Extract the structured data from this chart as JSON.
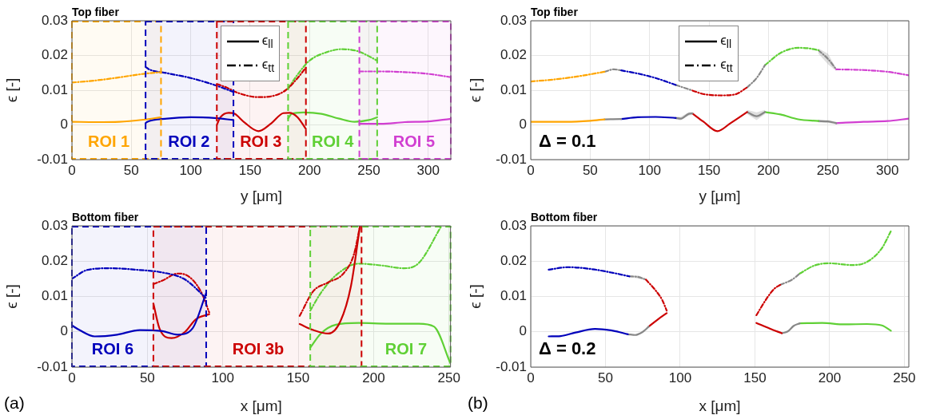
{
  "chart_data": [
    {
      "type": "line",
      "title": "Top fiber",
      "xlabel": "y [μm]",
      "ylabel": "ϵ [-]",
      "xlim": [
        0,
        319
      ],
      "ylim": [
        -0.01,
        0.03
      ],
      "xticks": [
        0,
        50,
        100,
        150,
        200,
        250,
        300
      ],
      "yticks": [
        -0.01,
        0,
        0.01,
        0.02,
        0.03
      ],
      "grid": true,
      "annotations": [
        "ϵ$_{ll}$",
        "ϵ$_{tt}$"
      ],
      "bands": [
        {
          "axis": "x",
          "from": 0,
          "to": 75,
          "label": "ROI 1",
          "color": "#ffa500"
        },
        {
          "axis": "x",
          "from": 62,
          "to": 136,
          "label": "ROI 2",
          "color": "#0000bb"
        },
        {
          "axis": "x",
          "from": 122,
          "to": 197,
          "label": "ROI 3",
          "color": "#cc0000"
        },
        {
          "axis": "x",
          "from": 182,
          "to": 257,
          "label": "ROI 4",
          "color": "#5fd035"
        },
        {
          "axis": "x",
          "from": 242,
          "to": 319,
          "label": "ROI 5",
          "color": "#d13fd1"
        }
      ],
      "series": [
        {
          "color": "#ffa500",
          "line_style": "solid",
          "x": [
            0,
            20,
            40,
            60,
            75
          ],
          "values": [
            0.0009,
            0.0008,
            0.0009,
            0.0015,
            0.0022
          ]
        },
        {
          "color": "#ffa500",
          "line_style": "dashed",
          "x": [
            0,
            20,
            40,
            60,
            75
          ],
          "values": [
            0.0122,
            0.0128,
            0.0137,
            0.0147,
            0.0152
          ]
        },
        {
          "color": "#0000bb",
          "line_style": "solid",
          "x": [
            62,
            63,
            80,
            100,
            120,
            136
          ],
          "values": [
            0.0005,
            0.0008,
            0.0018,
            0.0022,
            0.002,
            0.0014
          ]
        },
        {
          "color": "#0000bb",
          "line_style": "dashed",
          "x": [
            62,
            65,
            80,
            100,
            120,
            136
          ],
          "values": [
            0.0167,
            0.016,
            0.0149,
            0.0135,
            0.0115,
            0.0095
          ]
        },
        {
          "color": "#cc0000",
          "line_style": "solid",
          "x": [
            122,
            125,
            132,
            137,
            145,
            157,
            168,
            178,
            183,
            190,
            197
          ],
          "values": [
            0,
            0.0022,
            0.0035,
            0.0032,
            0.0008,
            -0.0018,
            0.0005,
            0.0034,
            0.0035,
            0.0022,
            -0.0012
          ]
        },
        {
          "color": "#cc0000",
          "line_style": "dashed",
          "x": [
            122,
            130,
            140,
            157,
            170,
            180,
            190,
            197
          ],
          "values": [
            0.0118,
            0.0108,
            0.0092,
            0.008,
            0.0084,
            0.01,
            0.0135,
            0.0165
          ]
        },
        {
          "color": "#5fd035",
          "line_style": "solid",
          "x": [
            182,
            185,
            195,
            210,
            225,
            238,
            250,
            257
          ],
          "values": [
            0.0018,
            0.0032,
            0.0036,
            0.0032,
            0.0018,
            0.0009,
            0.0014,
            0.0022
          ]
        },
        {
          "color": "#5fd035",
          "line_style": "dashed",
          "x": [
            182,
            190,
            200,
            215,
            227,
            240,
            250,
            257
          ],
          "values": [
            0.0105,
            0.0145,
            0.0185,
            0.021,
            0.0218,
            0.0213,
            0.0198,
            0.0185
          ]
        },
        {
          "color": "#d13fd1",
          "line_style": "solid",
          "x": [
            242,
            260,
            280,
            300,
            318
          ],
          "values": [
            0.0003,
            0.0003,
            0.0008,
            0.001,
            0.0017
          ]
        },
        {
          "color": "#d13fd1",
          "line_style": "dashed",
          "x": [
            242,
            260,
            280,
            300,
            318
          ],
          "values": [
            0.0154,
            0.0154,
            0.0152,
            0.0147,
            0.0138
          ]
        }
      ]
    },
    {
      "type": "line",
      "title": "Top fiber",
      "xlabel": "y [μm]",
      "ylabel": "ϵ [-]",
      "xlim": [
        0,
        318
      ],
      "ylim": [
        -0.01,
        0.03
      ],
      "xticks": [
        0,
        50,
        100,
        150,
        200,
        250,
        300
      ],
      "yticks": [
        -0.01,
        0,
        0.01,
        0.02,
        0.03
      ],
      "grid": true,
      "annotations": [
        "ϵ$_{ll}$",
        "ϵ$_{tt}$",
        "Δ = 0.1"
      ],
      "series": [
        {
          "color": "#ffa500",
          "line_style": "solid",
          "x": [
            0,
            30,
            50,
            62
          ],
          "values": [
            0.0009,
            0.0009,
            0.0012,
            0.0016
          ]
        },
        {
          "color": "#888888",
          "line_style": "solid",
          "x": [
            62,
            76
          ],
          "values": [
            0.0016,
            0.0017
          ]
        },
        {
          "color": "#0000bb",
          "line_style": "solid",
          "x": [
            76,
            90,
            105,
            122
          ],
          "values": [
            0.0017,
            0.0022,
            0.0023,
            0.002
          ]
        },
        {
          "color": "#888888",
          "line_style": "solid",
          "x": [
            122,
            126,
            133,
            136
          ],
          "values": [
            0.002,
            0.0018,
            0.0032,
            0.0033
          ],
          "lower": [
            0.0016,
            0.0013,
            0.0027,
            0.0029
          ],
          "upper": [
            0.0024,
            0.0023,
            0.0037,
            0.0037
          ]
        },
        {
          "color": "#cc0000",
          "line_style": "solid",
          "x": [
            136,
            145,
            157,
            168,
            182
          ],
          "values": [
            0.0033,
            0.001,
            -0.0018,
            0.0005,
            0.0037
          ]
        },
        {
          "color": "#888888",
          "line_style": "solid",
          "x": [
            182,
            190,
            197
          ],
          "values": [
            0.0037,
            0.0025,
            0.0037
          ],
          "lower": [
            0.0031,
            0.0014,
            0.0031
          ],
          "upper": [
            0.0043,
            0.0036,
            0.0043
          ]
        },
        {
          "color": "#5fd035",
          "line_style": "solid",
          "x": [
            197,
            210,
            225,
            242
          ],
          "values": [
            0.0037,
            0.003,
            0.0016,
            0.0011
          ]
        },
        {
          "color": "#888888",
          "line_style": "solid",
          "x": [
            242,
            250,
            257
          ],
          "values": [
            0.0011,
            0.001,
            0.0005
          ],
          "lower": [
            0.0007,
            0.0006,
            0.0001
          ],
          "upper": [
            0.0015,
            0.0014,
            0.0009
          ]
        },
        {
          "color": "#d13fd1",
          "line_style": "solid",
          "x": [
            257,
            280,
            300,
            318
          ],
          "values": [
            0.0005,
            0.0009,
            0.0011,
            0.0018
          ]
        },
        {
          "color": "#ffa500",
          "line_style": "dashed",
          "x": [
            0,
            20,
            40,
            62
          ],
          "values": [
            0.0125,
            0.0131,
            0.014,
            0.0153
          ]
        },
        {
          "color": "#888888",
          "line_style": "dashed",
          "x": [
            62,
            70,
            76
          ],
          "values": [
            0.0153,
            0.016,
            0.0157
          ]
        },
        {
          "color": "#0000bb",
          "line_style": "dashed",
          "x": [
            76,
            90,
            105,
            122
          ],
          "values": [
            0.0157,
            0.0148,
            0.0135,
            0.0115
          ]
        },
        {
          "color": "#888888",
          "line_style": "dashed",
          "x": [
            122,
            136
          ],
          "values": [
            0.0115,
            0.0099
          ]
        },
        {
          "color": "#cc0000",
          "line_style": "dashed",
          "x": [
            136,
            145,
            160,
            172,
            182
          ],
          "values": [
            0.0099,
            0.0089,
            0.0085,
            0.0088,
            0.0108
          ]
        },
        {
          "color": "#888888",
          "line_style": "dashed",
          "x": [
            182,
            190,
            197
          ],
          "values": [
            0.0108,
            0.0135,
            0.0172
          ]
        },
        {
          "color": "#5fd035",
          "line_style": "dashed",
          "x": [
            197,
            210,
            225,
            235,
            242
          ],
          "values": [
            0.0172,
            0.0207,
            0.0222,
            0.022,
            0.0215
          ]
        },
        {
          "color": "#888888",
          "line_style": "dashed",
          "x": [
            242,
            250,
            257
          ],
          "values": [
            0.0215,
            0.019,
            0.016
          ],
          "lower": [
            0.0205,
            0.0175,
            0.0155
          ],
          "upper": [
            0.022,
            0.0205,
            0.0162
          ]
        },
        {
          "color": "#d13fd1",
          "line_style": "dashed",
          "x": [
            257,
            280,
            300,
            318
          ],
          "values": [
            0.016,
            0.0158,
            0.0153,
            0.0143
          ]
        }
      ]
    },
    {
      "type": "line",
      "title": "Bottom fiber",
      "xlabel": "x [μm]",
      "ylabel": "ϵ [-]",
      "xlim": [
        0,
        251
      ],
      "ylim": [
        -0.01,
        0.03
      ],
      "xticks": [
        0,
        50,
        100,
        150,
        200,
        250
      ],
      "yticks": [
        -0.01,
        0,
        0.01,
        0.02,
        0.03
      ],
      "grid": true,
      "annotations": [
        "(a)"
      ],
      "bands": [
        {
          "axis": "x",
          "from": 0,
          "to": 89,
          "label": "ROI 6",
          "color": "#0000bb"
        },
        {
          "axis": "x",
          "from": 54,
          "to": 192,
          "label": "ROI 3b",
          "color": "#cc0000"
        },
        {
          "axis": "x",
          "from": 158,
          "to": 251,
          "label": "ROI 7",
          "color": "#5fd035"
        }
      ],
      "series": [
        {
          "color": "#0000bb",
          "line_style": "solid",
          "x": [
            0,
            5,
            15,
            30,
            45,
            60,
            70,
            80,
            89
          ],
          "values": [
            0.0018,
            0.0005,
            -0.0013,
            -0.0008,
            0.0005,
            0.0002,
            -0.0008,
            0.001,
            0.011
          ]
        },
        {
          "color": "#0000bb",
          "line_style": "dashed",
          "x": [
            0,
            10,
            25,
            45,
            60,
            75,
            89
          ],
          "values": [
            0.015,
            0.0175,
            0.018,
            0.0175,
            0.0168,
            0.0148,
            0.0095
          ]
        },
        {
          "color": "#cc0000",
          "line_style": "solid",
          "x": [
            54,
            58,
            66,
            75,
            82,
            91
          ],
          "values": [
            0.008,
            0.001,
            -0.0018,
            0,
            0.0035,
            0.005
          ]
        },
        {
          "color": "#cc0000",
          "line_style": "dashed",
          "x": [
            54,
            60,
            70,
            78,
            86,
            91
          ],
          "values": [
            0.0135,
            0.0145,
            0.0165,
            0.0155,
            0.011,
            0.0055
          ]
        },
        {
          "color": "#cc0000",
          "line_style": "solid",
          "x": [
            151,
            160,
            170,
            178,
            185,
            191
          ],
          "values": [
            0.0022,
            0.0005,
            -0.0005,
            0.003,
            0.013,
            0.03
          ]
        },
        {
          "color": "#cc0000",
          "line_style": "dashed",
          "x": [
            151,
            160,
            170,
            180,
            187,
            191
          ],
          "values": [
            0.0045,
            0.0115,
            0.014,
            0.0165,
            0.022,
            0.03
          ]
        },
        {
          "color": "#5fd035",
          "line_style": "solid",
          "x": [
            158,
            165,
            175,
            190,
            210,
            230,
            240,
            251
          ],
          "values": [
            -0.0045,
            -0.0005,
            0.002,
            0.0025,
            0.0023,
            0.0023,
            0.0015,
            -0.009
          ]
        },
        {
          "color": "#5fd035",
          "line_style": "dashed",
          "x": [
            158,
            165,
            175,
            190,
            205,
            220,
            230,
            245
          ],
          "values": [
            0.006,
            0.011,
            0.016,
            0.0193,
            0.0188,
            0.018,
            0.0195,
            0.03
          ]
        }
      ]
    },
    {
      "type": "line",
      "title": "Bottom fiber",
      "xlabel": "x [μm]",
      "ylabel": "ϵ [-]",
      "xlim": [
        0,
        253
      ],
      "ylim": [
        -0.01,
        0.03
      ],
      "xticks": [
        0,
        50,
        100,
        150,
        200,
        250
      ],
      "yticks": [
        -0.01,
        0,
        0.01,
        0.02,
        0.03
      ],
      "grid": true,
      "annotations": [
        "Δ = 0.2",
        "(b)"
      ],
      "series": [
        {
          "color": "#0000bb",
          "line_style": "solid",
          "x": [
            12,
            20,
            30,
            43,
            55,
            65
          ],
          "values": [
            -0.0013,
            -0.0012,
            -0.0002,
            0.0008,
            0.0003,
            -0.0007
          ]
        },
        {
          "color": "#888888",
          "line_style": "solid",
          "x": [
            65,
            70,
            75,
            79
          ],
          "values": [
            -0.0007,
            -0.0009,
            0,
            0.0015
          ]
        },
        {
          "color": "#cc0000",
          "line_style": "solid",
          "x": [
            79,
            85,
            91
          ],
          "values": [
            0.0015,
            0.0035,
            0.0053
          ]
        },
        {
          "color": "#0000bb",
          "line_style": "dashed",
          "x": [
            12,
            25,
            40,
            55,
            66
          ],
          "values": [
            0.0176,
            0.0183,
            0.0178,
            0.0167,
            0.0157
          ]
        },
        {
          "color": "#888888",
          "line_style": "dashed",
          "x": [
            66,
            72,
            77
          ],
          "values": [
            0.0157,
            0.0155,
            0.0148
          ],
          "lower": [
            0.0155,
            0.0151,
            0.0146
          ],
          "upper": [
            0.0159,
            0.016,
            0.015
          ]
        },
        {
          "color": "#cc0000",
          "line_style": "dashed",
          "x": [
            77,
            83,
            88,
            91
          ],
          "values": [
            0.0148,
            0.012,
            0.009,
            0.006
          ]
        },
        {
          "color": "#cc0000",
          "line_style": "solid",
          "x": [
            151,
            160,
            168
          ],
          "values": [
            0.0025,
            0.0009,
            -0.0004
          ]
        },
        {
          "color": "#888888",
          "line_style": "solid",
          "x": [
            168,
            172,
            176,
            180
          ],
          "values": [
            -0.0004,
            0.0001,
            0.0017,
            0.0024
          ]
        },
        {
          "color": "#5fd035",
          "line_style": "solid",
          "x": [
            180,
            195,
            210,
            225,
            235,
            241
          ],
          "values": [
            0.0024,
            0.0025,
            0.0021,
            0.0022,
            0.0018,
            0.0003
          ]
        },
        {
          "color": "#cc0000",
          "line_style": "dashed",
          "x": [
            151,
            158,
            163,
            167
          ],
          "values": [
            0.0047,
            0.0095,
            0.0122,
            0.0133
          ]
        },
        {
          "color": "#888888",
          "line_style": "dashed",
          "x": [
            167,
            175,
            180
          ],
          "values": [
            0.0133,
            0.0148,
            0.0165
          ]
        },
        {
          "color": "#5fd035",
          "line_style": "dashed",
          "x": [
            180,
            190,
            200,
            215,
            225,
            235,
            241
          ],
          "values": [
            0.0165,
            0.0188,
            0.0194,
            0.0189,
            0.0198,
            0.0237,
            0.0285
          ]
        }
      ]
    }
  ]
}
